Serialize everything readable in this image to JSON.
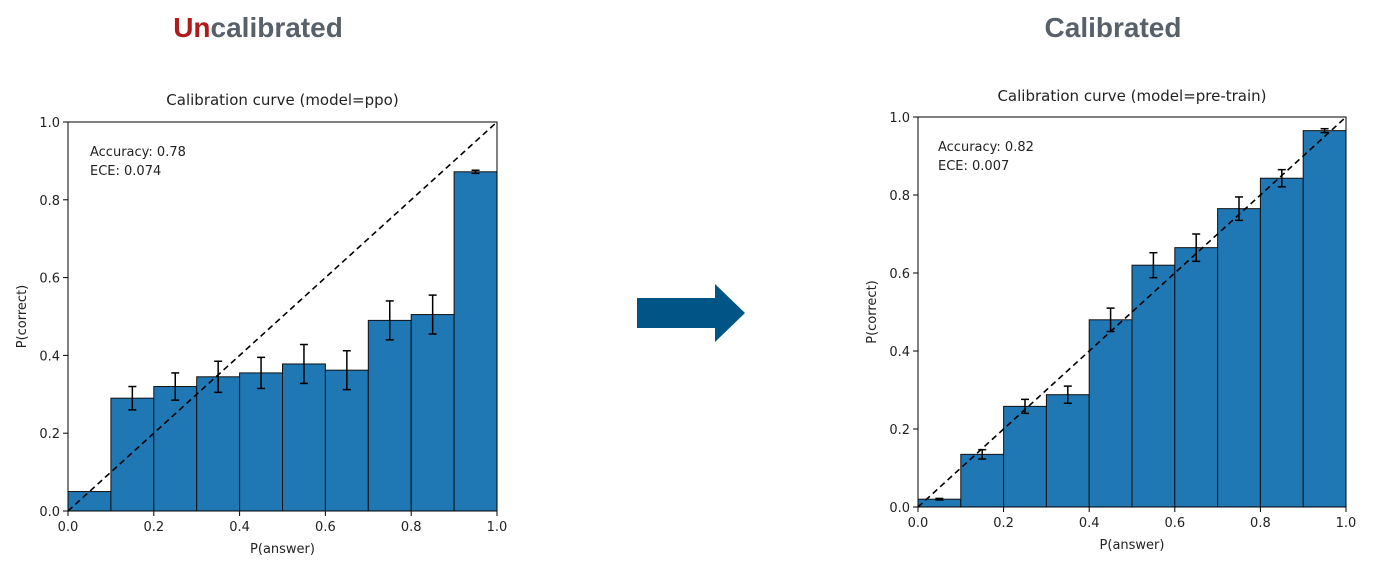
{
  "headings": {
    "left": {
      "highlight": "Un",
      "rest": "calibrated"
    },
    "right": "Calibrated"
  },
  "chart_data": [
    {
      "type": "histogram",
      "title": "Calibration curve (model=ppo)",
      "x_label": "P(answer)",
      "y_label": "P(correct)",
      "annotations": [
        "Accuracy: 0.78",
        "ECE: 0.074"
      ],
      "bins": [
        0,
        0.1,
        0.2,
        0.3,
        0.4,
        0.5,
        0.6,
        0.7,
        0.8,
        0.9,
        1.0
      ],
      "values": [
        0.05,
        0.29,
        0.32,
        0.345,
        0.355,
        0.378,
        0.362,
        0.49,
        0.505,
        0.872
      ],
      "errors": [
        null,
        0.03,
        0.035,
        0.04,
        0.04,
        0.05,
        0.05,
        0.05,
        0.05,
        0.004
      ],
      "color": "#1f77b4",
      "xlim": [
        0,
        1
      ],
      "ylim": [
        0,
        1
      ],
      "xticks": [
        {
          "value": 0,
          "label": "0.0"
        },
        0.2,
        0.4,
        0.6,
        0.8,
        {
          "value": 1,
          "label": "1.0"
        }
      ],
      "yticks": [
        {
          "value": 0,
          "label": "0.0"
        },
        0.2,
        0.4,
        0.6,
        0.8,
        {
          "value": 1,
          "label": "1.0"
        }
      ]
    },
    {
      "type": "histogram",
      "title": "Calibration curve (model=pre-train)",
      "x_label": "P(answer)",
      "y_label": "P(correct)",
      "annotations": [
        "Accuracy: 0.82",
        "ECE: 0.007"
      ],
      "bins": [
        0,
        0.1,
        0.2,
        0.3,
        0.4,
        0.5,
        0.6,
        0.7,
        0.8,
        0.9,
        1.0
      ],
      "values": [
        0.02,
        0.135,
        0.258,
        0.288,
        0.48,
        0.62,
        0.665,
        0.765,
        0.843,
        0.965
      ],
      "errors": [
        0.002,
        0.012,
        0.018,
        0.022,
        0.03,
        0.032,
        0.035,
        0.03,
        0.022,
        0.005
      ],
      "color": "#1f77b4",
      "xlim": [
        0,
        1
      ],
      "ylim": [
        0,
        1
      ],
      "xticks": [
        {
          "value": 0,
          "label": "0.0"
        },
        0.2,
        0.4,
        0.6,
        0.8,
        {
          "value": 1,
          "label": "1.0"
        }
      ],
      "yticks": [
        {
          "value": 0,
          "label": "0.0"
        },
        0.2,
        0.4,
        0.6,
        0.8,
        {
          "value": 1,
          "label": "1.0"
        }
      ]
    }
  ]
}
